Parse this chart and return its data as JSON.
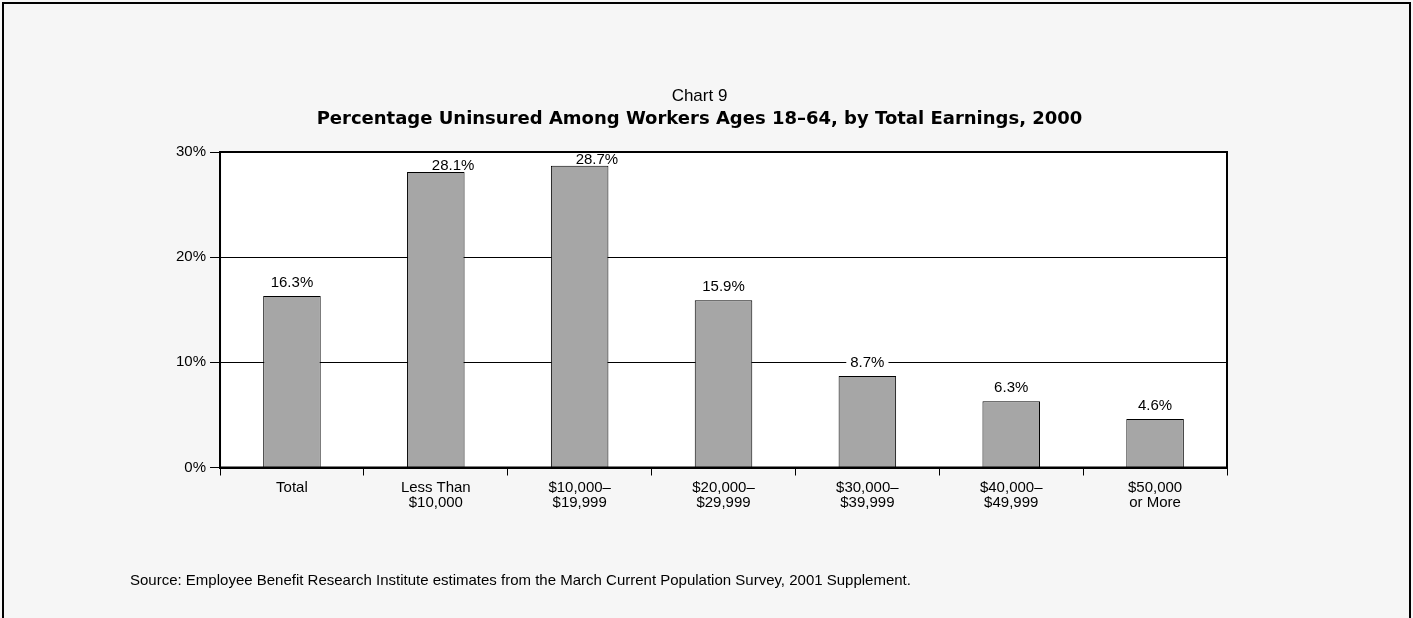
{
  "chart_data": {
    "type": "bar",
    "title": "Chart 9",
    "subtitle": "Percentage Uninsured Among Workers Ages 18–64, by Total Earnings, 2000",
    "categories": [
      "Total",
      "Less Than\n$10,000",
      "$10,000–\n$19,999",
      "$20,000–\n$29,999",
      "$30,000–\n$39,999",
      "$40,000–\n$49,999",
      "$50,000\nor More"
    ],
    "values": [
      16.3,
      28.1,
      28.7,
      15.9,
      8.7,
      6.3,
      4.6
    ],
    "value_labels": [
      "16.3%",
      "28.1%",
      "28.7%",
      "15.9%",
      "8.7%",
      "6.3%",
      "4.6%"
    ],
    "color": "#a6a6a6",
    "ylim": [
      0,
      30
    ],
    "yticks": [
      {
        "value": 0,
        "label": "0%"
      },
      {
        "value": 10,
        "label": "10%"
      },
      {
        "value": 20,
        "label": "20%"
      },
      {
        "value": 30,
        "label": "30%"
      }
    ],
    "grid": "y",
    "annotations": [
      "Source: Employee Benefit Research Institute estimates from the March Current Population Survey, 2001 Supplement."
    ]
  }
}
